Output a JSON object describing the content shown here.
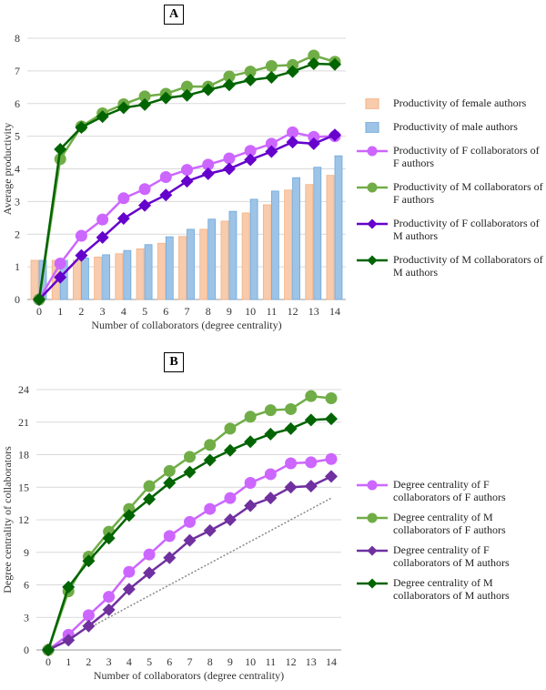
{
  "chart_data": [
    {
      "panel": "A",
      "type": "bar+line",
      "x": [
        0,
        1,
        2,
        3,
        4,
        5,
        6,
        7,
        8,
        9,
        10,
        11,
        12,
        13,
        14
      ],
      "xlabel": "Number of collaborators (degree centrality)",
      "ylabel": "Average productivity",
      "ylim": [
        0,
        8
      ],
      "yticks": [
        0,
        1,
        2,
        3,
        4,
        5,
        6,
        7,
        8
      ],
      "grid": true,
      "legend": "right",
      "series": [
        {
          "name": "Productivity of female authors",
          "kind": "bar",
          "color": "#f8cbad",
          "stroke": "#f4b183",
          "values": [
            1.2,
            1.2,
            1.2,
            1.3,
            1.4,
            1.55,
            1.72,
            1.93,
            2.15,
            2.4,
            2.65,
            2.9,
            3.35,
            3.52,
            3.8
          ]
        },
        {
          "name": "Productivity of male authors",
          "kind": "bar",
          "color": "#9dc3e6",
          "stroke": "#6fa8dc",
          "values": [
            1.2,
            1.2,
            1.27,
            1.37,
            1.5,
            1.68,
            1.92,
            2.15,
            2.46,
            2.7,
            3.07,
            3.32,
            3.73,
            4.05,
            4.4
          ]
        },
        {
          "name": "Productivity of F collaborators of F authors",
          "kind": "line",
          "marker": "circle",
          "color": "#cc66ff",
          "values": [
            0,
            1.1,
            1.95,
            2.45,
            3.1,
            3.38,
            3.75,
            3.97,
            4.13,
            4.32,
            4.55,
            4.77,
            5.12,
            4.98,
            5.0
          ]
        },
        {
          "name": "Productivity of M collaborators of F authors",
          "kind": "line",
          "marker": "circle",
          "color": "#70ad47",
          "values": [
            0,
            4.3,
            5.3,
            5.7,
            5.98,
            6.22,
            6.3,
            6.52,
            6.52,
            6.83,
            6.98,
            7.15,
            7.18,
            7.47,
            7.28
          ]
        },
        {
          "name": "Productivity of F collaborators of M authors",
          "kind": "line",
          "marker": "diamond",
          "color": "#6600cc",
          "values": [
            0,
            0.68,
            1.35,
            1.9,
            2.48,
            2.88,
            3.2,
            3.62,
            3.85,
            4.0,
            4.28,
            4.53,
            4.82,
            4.77,
            5.04
          ]
        },
        {
          "name": "Productivity of M collaborators of M authors",
          "kind": "line",
          "marker": "diamond",
          "color": "#006400",
          "values": [
            0,
            4.6,
            5.27,
            5.6,
            5.87,
            5.97,
            6.17,
            6.25,
            6.42,
            6.57,
            6.72,
            6.8,
            6.98,
            7.22,
            7.2
          ]
        }
      ]
    },
    {
      "panel": "B",
      "type": "line",
      "x": [
        0,
        1,
        2,
        3,
        4,
        5,
        6,
        7,
        8,
        9,
        10,
        11,
        12,
        13,
        14
      ],
      "xlabel": "Number of collaborators (degree centrality)",
      "ylabel": "Degree centrality of collaborators",
      "ylim": [
        0,
        24
      ],
      "yticks": [
        0,
        3,
        6,
        9,
        12,
        15,
        18,
        21,
        24
      ],
      "grid": true,
      "legend": "right",
      "reference_line": {
        "style": "dotted",
        "color": "#888888",
        "x": [
          2,
          14
        ],
        "y": [
          2,
          14
        ]
      },
      "series": [
        {
          "name": "Degree centrality of F collaborators of F authors",
          "marker": "circle",
          "color": "#cc66ff",
          "values": [
            0,
            1.4,
            3.2,
            4.9,
            7.2,
            8.8,
            10.5,
            11.8,
            13.0,
            14.0,
            15.4,
            16.2,
            17.2,
            17.3,
            17.6
          ]
        },
        {
          "name": "Degree centrality of M collaborators of F authors",
          "marker": "circle",
          "color": "#70ad47",
          "values": [
            0,
            5.4,
            8.6,
            10.9,
            13.0,
            15.1,
            16.5,
            17.8,
            18.9,
            20.4,
            21.5,
            22.1,
            22.2,
            23.4,
            23.2
          ]
        },
        {
          "name": "Degree centrality of F collaborators of M authors",
          "marker": "diamond",
          "color": "#7030a0",
          "values": [
            0,
            0.9,
            2.2,
            3.7,
            5.6,
            7.1,
            8.5,
            10.1,
            11.0,
            12.0,
            13.3,
            14.0,
            15.0,
            15.1,
            16.0
          ]
        },
        {
          "name": "Degree centrality of M collaborators of M authors",
          "marker": "diamond",
          "color": "#006400",
          "values": [
            0,
            5.8,
            8.2,
            10.3,
            12.4,
            13.9,
            15.4,
            16.4,
            17.5,
            18.4,
            19.2,
            19.9,
            20.4,
            21.2,
            21.3
          ]
        }
      ]
    }
  ]
}
